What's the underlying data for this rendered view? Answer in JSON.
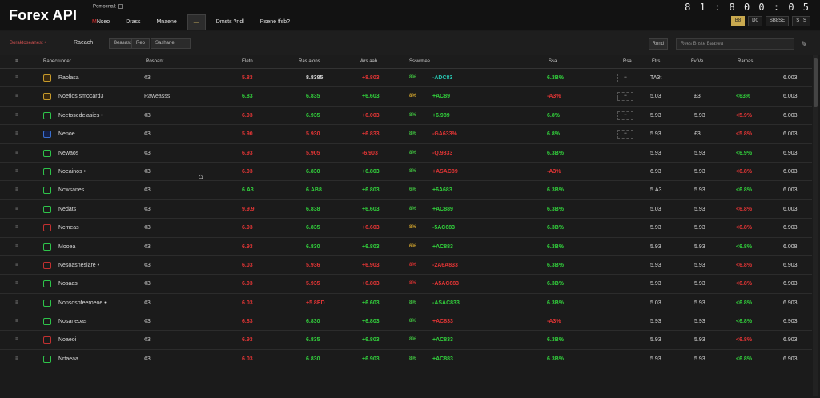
{
  "app": {
    "title": "Forex API",
    "subtitle": "Pemoenalt"
  },
  "nav": {
    "tabs": [
      {
        "prefix": "M",
        "label": "Nseo"
      },
      {
        "prefix": "",
        "label": "Drass"
      },
      {
        "prefix": "",
        "label": "Mnaene"
      },
      {
        "prefix": "",
        "label": "—"
      },
      {
        "prefix": "",
        "label": "Dmsts ?ndl"
      },
      {
        "prefix": "",
        "label": "Rsene ffsb?"
      }
    ]
  },
  "clock": "8 1 : 8 0 0 : 0 5",
  "top_buttons": [
    "B8",
    "D0",
    "SB8SE",
    "SS"
  ],
  "toolbar": {
    "filter_label": "Boraktoseanest •",
    "filter_name": "Raeach",
    "btn1": "Beasass",
    "btn2": "Reo",
    "btn3": "Sashane",
    "search_btn": "Rnnd",
    "search_placeholder": "Rees   Bnste   Baasea"
  },
  "columns": {
    "name": "Ranecruoner",
    "type": "Rosoant",
    "bid": "Eletn",
    "ask": "Ras alons",
    "chg": "Wrs aah",
    "pct": "",
    "chart": "Ssswmee",
    "last": "Ssa",
    "spr": "Rsa",
    "low": "Ftrs",
    "high": "Fv  Ve",
    "vol": "Rarnas",
    "last2": ""
  },
  "rows": [
    {
      "idx": "≡",
      "flag": "gold",
      "name": "Raolasa",
      "type": "¢3",
      "bid": "5.83",
      "bid_c": "neg",
      "ask": "8.8385",
      "ask_c": "none",
      "chg": "+8.803",
      "chg_c": "neg",
      "pct": "8%",
      "pct_c": "pct-pos",
      "chart": "-ADC83",
      "chart_c": "chart-cyan",
      "last": "6.3B%",
      "last_c": "pos",
      "spr": "••",
      "low": "TA3t",
      "high": "",
      "vol": "",
      "vol_c": "pos",
      "last2": "6.003"
    },
    {
      "idx": "≡",
      "flag": "gold",
      "name": "Noefios smocard3",
      "type": "Raweasss",
      "bid": "6.83",
      "bid_c": "pos",
      "ask": "6.835",
      "ask_c": "pos",
      "chg": "+6.603",
      "chg_c": "pos",
      "pct": "8%",
      "pct_c": "pct-gold",
      "chart": "+AC89",
      "chart_c": "pos",
      "last": "-A3%",
      "last_c": "neg",
      "spr": "••",
      "low": "5.03",
      "high": "£3",
      "vol": "<63%",
      "vol_c": "pos",
      "last2": "6.003"
    },
    {
      "idx": "≡",
      "flag": "",
      "name": "Ncetosedelasies •",
      "type": "¢3",
      "bid": "6.93",
      "bid_c": "neg",
      "ask": "6.935",
      "ask_c": "pos",
      "chg": "+6.003",
      "chg_c": "neg",
      "pct": "8%",
      "pct_c": "pct-pos",
      "chart": "+6.989",
      "chart_c": "pos",
      "last": "6.8%",
      "last_c": "pos",
      "spr": "••",
      "low": "5.93",
      "high": "5.93",
      "vol": "<5.9%",
      "vol_c": "neg",
      "last2": "6.003"
    },
    {
      "idx": "≡",
      "flag": "blue",
      "name": "Nenoe",
      "type": "¢3",
      "bid": "5.90",
      "bid_c": "neg",
      "ask": "5.930",
      "ask_c": "neg",
      "chg": "+6.833",
      "chg_c": "neg",
      "pct": "8%",
      "pct_c": "pct-pos",
      "chart": "-GA633%",
      "chart_c": "neg",
      "last": "6.8%",
      "last_c": "pos",
      "spr": "••",
      "low": "5.93",
      "high": "£3",
      "vol": "<5.8%",
      "vol_c": "neg",
      "last2": "6.003"
    },
    {
      "idx": "≡",
      "flag": "",
      "name": "Newaos",
      "type": "¢3",
      "bid": "6.93",
      "bid_c": "neg",
      "ask": "5.905",
      "ask_c": "neg",
      "chg": "-6.903",
      "chg_c": "neg",
      "pct": "8%",
      "pct_c": "pct-pos",
      "chart": "-Q.9833",
      "chart_c": "neg",
      "last": "6.3B%",
      "last_c": "pos",
      "spr": "",
      "low": "5.93",
      "high": "5.93",
      "vol": "<6.9%",
      "vol_c": "pos",
      "last2": "6.903"
    },
    {
      "idx": "≡",
      "flag": "",
      "name": "Noeainos •",
      "type": "¢3",
      "bid": "6.03",
      "bid_c": "neg",
      "ask": "6.830",
      "ask_c": "pos",
      "chg": "+6.803",
      "chg_c": "pos",
      "pct": "8%",
      "pct_c": "pct-pos",
      "chart": "+ASAC89",
      "chart_c": "neg",
      "last": "-A3%",
      "last_c": "neg",
      "spr": "",
      "low": "6.93",
      "high": "5.93",
      "vol": "<6.8%",
      "vol_c": "neg",
      "last2": "6.003"
    },
    {
      "idx": "≡",
      "flag": "",
      "name": "Ncwsanes",
      "type": "¢3",
      "bid": "6.A3",
      "bid_c": "pos",
      "ask": "6.AB8",
      "ask_c": "pos",
      "chg": "+6.803",
      "chg_c": "pos",
      "pct": "6%",
      "pct_c": "pct-pos",
      "chart": "+6A683",
      "chart_c": "pos",
      "last": "6.3B%",
      "last_c": "pos",
      "spr": "",
      "low": "5.A3",
      "high": "5.93",
      "vol": "<6.8%",
      "vol_c": "pos",
      "last2": "6.003"
    },
    {
      "idx": "≡",
      "flag": "",
      "name": "Nedats",
      "type": "¢3",
      "bid": "9.9.9",
      "bid_c": "neg",
      "ask": "6.838",
      "ask_c": "pos",
      "chg": "+6.603",
      "chg_c": "pos",
      "pct": "8%",
      "pct_c": "pct-pos",
      "chart": "+AC889",
      "chart_c": "pos",
      "last": "6.3B%",
      "last_c": "pos",
      "spr": "",
      "low": "5.03",
      "high": "5.93",
      "vol": "<6.8%",
      "vol_c": "neg",
      "last2": "6.003"
    },
    {
      "idx": "≡",
      "flag": "red",
      "name": "Ncmeas",
      "type": "¢3",
      "bid": "6.93",
      "bid_c": "neg",
      "ask": "6.835",
      "ask_c": "pos",
      "chg": "+6.603",
      "chg_c": "neg",
      "pct": "8%",
      "pct_c": "pct-gold",
      "chart": "-5AC683",
      "chart_c": "pos",
      "last": "6.3B%",
      "last_c": "pos",
      "spr": "",
      "low": "5.93",
      "high": "5.93",
      "vol": "<6.8%",
      "vol_c": "neg",
      "last2": "6.903"
    },
    {
      "idx": "≡",
      "flag": "",
      "name": "Mooea",
      "type": "¢3",
      "bid": "6.93",
      "bid_c": "neg",
      "ask": "6.830",
      "ask_c": "pos",
      "chg": "+6.803",
      "chg_c": "pos",
      "pct": "6%",
      "pct_c": "pct-gold",
      "chart": "+AC883",
      "chart_c": "pos",
      "last": "6.3B%",
      "last_c": "pos",
      "spr": "",
      "low": "5.93",
      "high": "5.93",
      "vol": "<6.8%",
      "vol_c": "pos",
      "last2": "6.008"
    },
    {
      "idx": "≡",
      "flag": "red",
      "name": "Nesoasneslare •",
      "type": "¢3",
      "bid": "6.03",
      "bid_c": "neg",
      "ask": "5.936",
      "ask_c": "neg",
      "chg": "+6.903",
      "chg_c": "neg",
      "pct": "8%",
      "pct_c": "pct-neg",
      "chart": "-2A6A833",
      "chart_c": "neg",
      "last": "6.3B%",
      "last_c": "pos",
      "spr": "",
      "low": "5.93",
      "high": "5.93",
      "vol": "<6.8%",
      "vol_c": "neg",
      "last2": "6.903"
    },
    {
      "idx": "≡",
      "flag": "",
      "name": "Nosaas",
      "type": "¢3",
      "bid": "6.03",
      "bid_c": "neg",
      "ask": "5.935",
      "ask_c": "neg",
      "chg": "+6.803",
      "chg_c": "neg",
      "pct": "8%",
      "pct_c": "pct-neg",
      "chart": "-A5AC683",
      "chart_c": "neg",
      "last": "6.3B%",
      "last_c": "pos",
      "spr": "",
      "low": "5.93",
      "high": "5.93",
      "vol": "<6.8%",
      "vol_c": "neg",
      "last2": "6.903"
    },
    {
      "idx": "≡",
      "flag": "",
      "name": "Nonsosofeeroeoe •",
      "type": "¢3",
      "bid": "6.03",
      "bid_c": "neg",
      "ask": "+5.8ED",
      "ask_c": "neg",
      "chg": "+6.603",
      "chg_c": "pos",
      "pct": "8%",
      "pct_c": "pct-pos",
      "chart": "-ASAC833",
      "chart_c": "pos",
      "last": "6.3B%",
      "last_c": "pos",
      "spr": "",
      "low": "5.03",
      "high": "5.93",
      "vol": "<6.8%",
      "vol_c": "pos",
      "last2": "6.903"
    },
    {
      "idx": "≡",
      "flag": "",
      "name": "Nosaneoas",
      "type": "¢3",
      "bid": "6.83",
      "bid_c": "neg",
      "ask": "6.830",
      "ask_c": "pos",
      "chg": "+6.803",
      "chg_c": "pos",
      "pct": "8%",
      "pct_c": "pct-pos",
      "chart": "+AC833",
      "chart_c": "neg",
      "last": "-A3%",
      "last_c": "neg",
      "spr": "",
      "low": "5.93",
      "high": "5.93",
      "vol": "<6.8%",
      "vol_c": "pos",
      "last2": "6.903"
    },
    {
      "idx": "≡",
      "flag": "red",
      "name": "Noaeoi",
      "type": "¢3",
      "bid": "6.93",
      "bid_c": "neg",
      "ask": "6.835",
      "ask_c": "pos",
      "chg": "+6.803",
      "chg_c": "pos",
      "pct": "8%",
      "pct_c": "pct-pos",
      "chart": "+AC833",
      "chart_c": "pos",
      "last": "6.3B%",
      "last_c": "pos",
      "spr": "",
      "low": "5.93",
      "high": "5.93",
      "vol": "<6.8%",
      "vol_c": "neg",
      "last2": "6.903"
    },
    {
      "idx": "≡",
      "flag": "",
      "name": "Nrtaeaa",
      "type": "¢3",
      "bid": "6.03",
      "bid_c": "neg",
      "ask": "6.830",
      "ask_c": "pos",
      "chg": "+6.903",
      "chg_c": "pos",
      "pct": "8%",
      "pct_c": "pct-pos",
      "chart": "+AC883",
      "chart_c": "pos",
      "last": "6.3B%",
      "last_c": "pos",
      "spr": "",
      "low": "5.93",
      "high": "5.93",
      "vol": "<6.8%",
      "vol_c": "pos",
      "last2": "6.903"
    }
  ]
}
